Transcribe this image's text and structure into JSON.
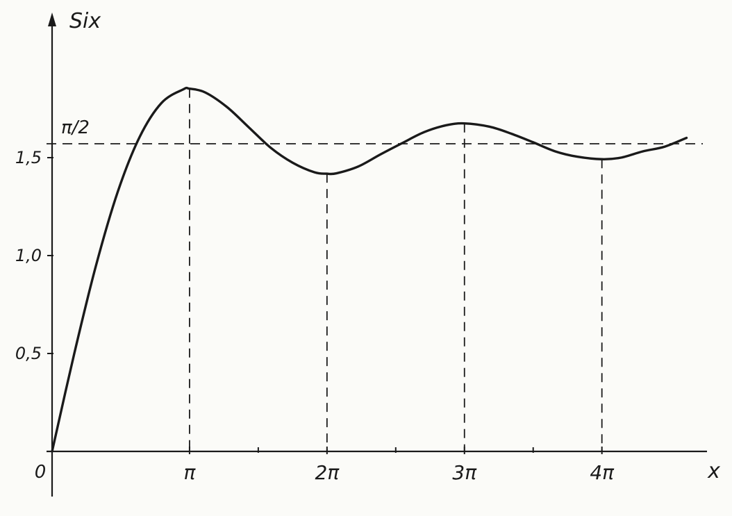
{
  "chart_data": {
    "type": "line",
    "xlabel": "x",
    "ylabel": "Six",
    "origin_label": "0",
    "x_ticks": [
      {
        "value": 3.14159,
        "label": "π"
      },
      {
        "value": 6.28319,
        "label": "2π"
      },
      {
        "value": 9.42478,
        "label": "3π"
      },
      {
        "value": 12.56637,
        "label": "4π"
      }
    ],
    "y_ticks": [
      {
        "value": 0.5,
        "label": "0,5"
      },
      {
        "value": 1.0,
        "label": "1,0"
      },
      {
        "value": 1.5,
        "label": "1,5"
      }
    ],
    "reference_line": {
      "value": 1.5708,
      "label": "π/2"
    },
    "dashed_drop_lines_at_x": [
      3.14159,
      6.28319,
      9.42478,
      12.56637
    ],
    "xlim": [
      0,
      14.8
    ],
    "ylim": [
      0,
      2.0
    ],
    "series": [
      {
        "function": "Si(x)",
        "x": [
          0,
          0.5,
          1,
          1.5,
          2,
          2.5,
          3,
          3.14,
          3.5,
          4,
          4.5,
          5,
          5.5,
          6,
          6.28,
          6.5,
          7,
          7.5,
          8,
          8.5,
          9,
          9.42,
          10,
          10.5,
          11,
          11.5,
          12,
          12.57,
          13,
          13.5,
          14,
          14.5
        ],
        "y": [
          0,
          0.493,
          0.946,
          1.325,
          1.605,
          1.779,
          1.849,
          1.852,
          1.833,
          1.758,
          1.654,
          1.55,
          1.474,
          1.425,
          1.418,
          1.42,
          1.455,
          1.516,
          1.574,
          1.63,
          1.665,
          1.675,
          1.658,
          1.622,
          1.578,
          1.532,
          1.505,
          1.492,
          1.5,
          1.532,
          1.556,
          1.601
        ]
      }
    ]
  }
}
